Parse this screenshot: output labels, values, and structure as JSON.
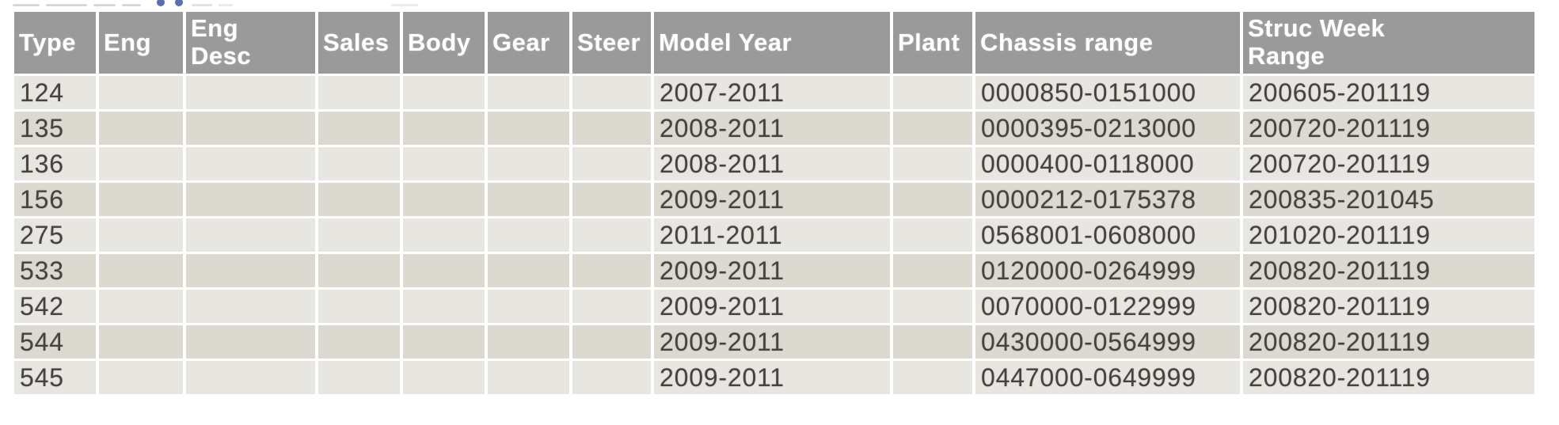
{
  "colors": {
    "header_bg": "#9a9a9a",
    "header_text": "#fdfdfd",
    "row_odd": "#e8e6e1",
    "row_even": "#dcd9d0",
    "cell_text": "#45433e",
    "gridline": "#ffffff",
    "accent_blue": "#3c56a5"
  },
  "top_edge": {
    "note_icons": [
      "clipped-text-fragments",
      "clipped-blue-link-dots"
    ]
  },
  "table": {
    "columns": [
      {
        "key": "type",
        "label": "Type"
      },
      {
        "key": "eng",
        "label": "Eng"
      },
      {
        "key": "eng_desc",
        "label": "Eng\nDesc"
      },
      {
        "key": "sales",
        "label": "Sales"
      },
      {
        "key": "body",
        "label": "Body"
      },
      {
        "key": "gear",
        "label": "Gear"
      },
      {
        "key": "steer",
        "label": "Steer"
      },
      {
        "key": "model_year",
        "label": "Model Year"
      },
      {
        "key": "plant",
        "label": "Plant"
      },
      {
        "key": "chassis_range",
        "label": "Chassis range"
      },
      {
        "key": "struc_week_range",
        "label": "Struc Week\nRange"
      }
    ],
    "rows": [
      {
        "type": "124",
        "eng": "",
        "eng_desc": "",
        "sales": "",
        "body": "",
        "gear": "",
        "steer": "",
        "model_year": "2007-2011",
        "plant": "",
        "chassis_range": "0000850-0151000",
        "struc_week_range": "200605-201119"
      },
      {
        "type": "135",
        "eng": "",
        "eng_desc": "",
        "sales": "",
        "body": "",
        "gear": "",
        "steer": "",
        "model_year": "2008-2011",
        "plant": "",
        "chassis_range": "0000395-0213000",
        "struc_week_range": "200720-201119"
      },
      {
        "type": "136",
        "eng": "",
        "eng_desc": "",
        "sales": "",
        "body": "",
        "gear": "",
        "steer": "",
        "model_year": "2008-2011",
        "plant": "",
        "chassis_range": "0000400-0118000",
        "struc_week_range": "200720-201119"
      },
      {
        "type": "156",
        "eng": "",
        "eng_desc": "",
        "sales": "",
        "body": "",
        "gear": "",
        "steer": "",
        "model_year": "2009-2011",
        "plant": "",
        "chassis_range": "0000212-0175378",
        "struc_week_range": "200835-201045"
      },
      {
        "type": "275",
        "eng": "",
        "eng_desc": "",
        "sales": "",
        "body": "",
        "gear": "",
        "steer": "",
        "model_year": "2011-2011",
        "plant": "",
        "chassis_range": "0568001-0608000",
        "struc_week_range": "201020-201119"
      },
      {
        "type": "533",
        "eng": "",
        "eng_desc": "",
        "sales": "",
        "body": "",
        "gear": "",
        "steer": "",
        "model_year": "2009-2011",
        "plant": "",
        "chassis_range": "0120000-0264999",
        "struc_week_range": "200820-201119"
      },
      {
        "type": "542",
        "eng": "",
        "eng_desc": "",
        "sales": "",
        "body": "",
        "gear": "",
        "steer": "",
        "model_year": "2009-2011",
        "plant": "",
        "chassis_range": "0070000-0122999",
        "struc_week_range": "200820-201119"
      },
      {
        "type": "544",
        "eng": "",
        "eng_desc": "",
        "sales": "",
        "body": "",
        "gear": "",
        "steer": "",
        "model_year": "2009-2011",
        "plant": "",
        "chassis_range": "0430000-0564999",
        "struc_week_range": "200820-201119"
      },
      {
        "type": "545",
        "eng": "",
        "eng_desc": "",
        "sales": "",
        "body": "",
        "gear": "",
        "steer": "",
        "model_year": "2009-2011",
        "plant": "",
        "chassis_range": "0447000-0649999",
        "struc_week_range": "200820-201119"
      }
    ]
  }
}
